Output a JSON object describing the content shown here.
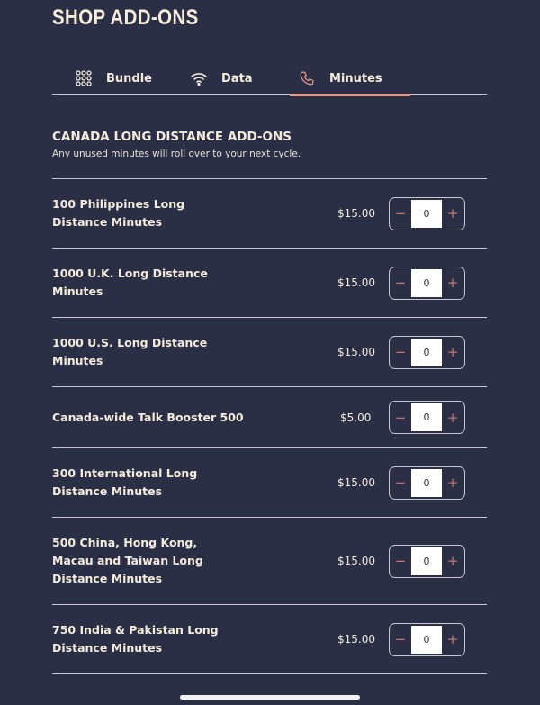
{
  "header": {
    "title": "SHOP ADD-ONS"
  },
  "tabs": [
    {
      "label": "Bundle",
      "icon": "grid-dots-icon"
    },
    {
      "label": "Data",
      "icon": "wifi-icon"
    },
    {
      "label": "Minutes",
      "icon": "phone-icon",
      "active": true
    }
  ],
  "section": {
    "title": "CANADA LONG DISTANCE ADD-ONS",
    "subtitle": "Any unused minutes will roll over to your next cycle."
  },
  "items": [
    {
      "name": "100 Philippines Long Distance Minutes",
      "price": "$15.00",
      "qty": "0"
    },
    {
      "name": "1000 U.K. Long Distance Minutes",
      "price": "$15.00",
      "qty": "0"
    },
    {
      "name": "1000 U.S. Long Distance Minutes",
      "price": "$15.00",
      "qty": "0"
    },
    {
      "name": "Canada-wide Talk Booster 500",
      "price": "$5.00",
      "qty": "0"
    },
    {
      "name": "300 International Long Distance Minutes",
      "price": "$15.00",
      "qty": "0"
    },
    {
      "name": "500 China, Hong Kong, Macau and Taiwan Long Distance Minutes",
      "price": "$15.00",
      "qty": "0"
    },
    {
      "name": "750 India & Pakistan Long Distance Minutes",
      "price": "$15.00",
      "qty": "0"
    }
  ],
  "stepper": {
    "minus": "−",
    "plus": "+"
  },
  "colors": {
    "background": "#2b2f45",
    "accent": "#e79c8c",
    "text": "#f3ecdc"
  }
}
